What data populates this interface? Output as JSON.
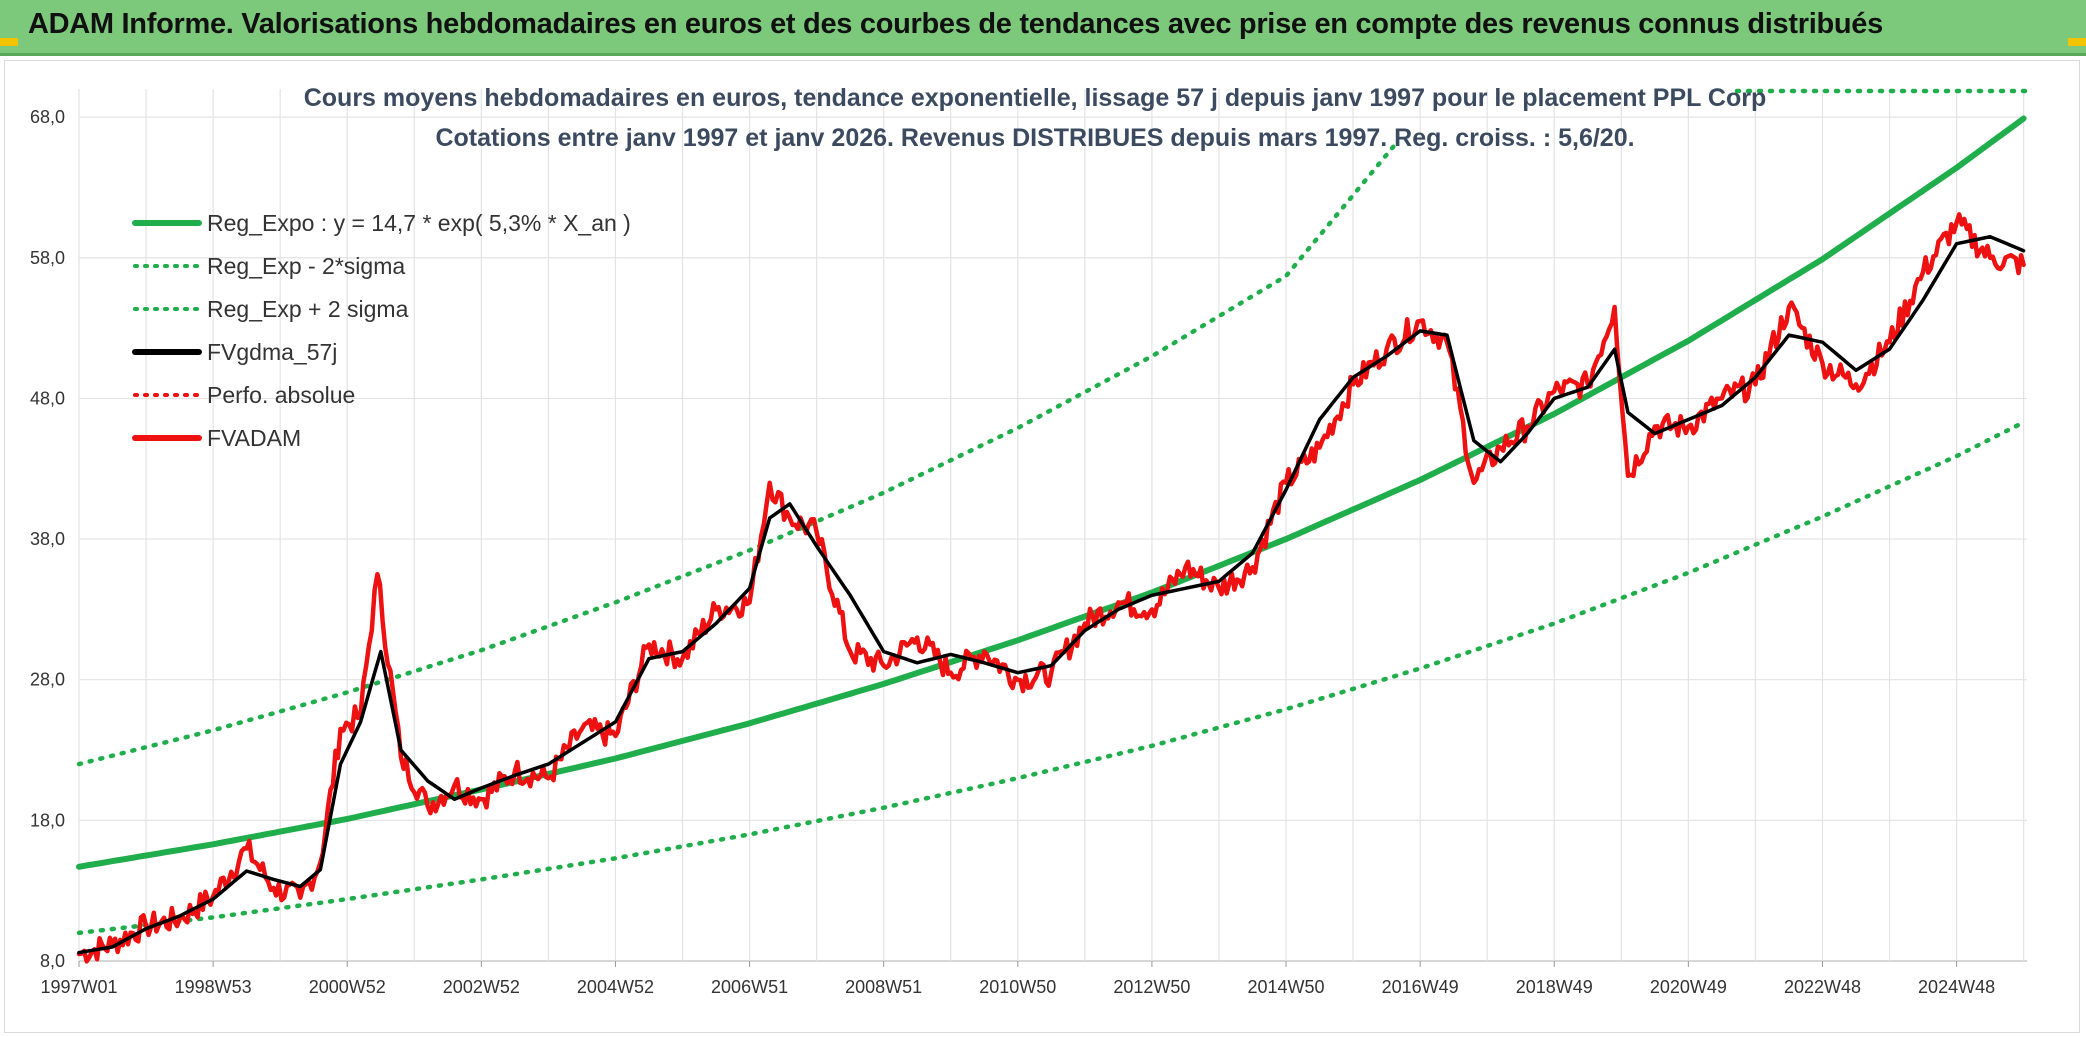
{
  "banner": {
    "title": "ADAM Informe. Valorisations hebdomadaires en euros et des courbes de tendances avec prise en compte des revenus connus distribués"
  },
  "colors": {
    "banner_bg": "#7dc97b",
    "trend_green": "#1fae4b",
    "fvadam_red": "#ee1111",
    "fvgdma_black": "#000000",
    "grid": "#e3e3e3"
  },
  "chart_data": {
    "type": "line",
    "title": "Cours moyens hebdomadaires en euros, tendance exponentielle, lissage 57 j depuis janv 1997 pour le placement PPL Corp",
    "subtitle": "Cotations entre janv 1997 et janv 2026. Revenus DISTRIBUES depuis mars 1997. Reg. croiss. : 5,6/20.",
    "xlabel": "",
    "ylabel": "",
    "x_range": [
      1997.0,
      2026.05
    ],
    "ylim": [
      8,
      70
    ],
    "y_ticks": [
      "8,0",
      "18,0",
      "28,0",
      "38,0",
      "48,0",
      "58,0",
      "68,0"
    ],
    "y_tick_values": [
      8,
      18,
      28,
      38,
      48,
      58,
      68
    ],
    "x_ticks": [
      "1997W01",
      "1998W53",
      "2000W52",
      "2002W52",
      "2004W52",
      "2006W51",
      "2008W51",
      "2010W50",
      "2012W50",
      "2014W50",
      "2016W49",
      "2018W49",
      "2020W49",
      "2022W48",
      "2024W48"
    ],
    "x_tick_values": [
      1997.0,
      1999.0,
      2001.0,
      2003.0,
      2005.0,
      2007.0,
      2009.0,
      2011.0,
      2013.0,
      2015.0,
      2017.0,
      2019.0,
      2021.0,
      2023.0,
      2025.0
    ],
    "grid": true,
    "legend_position": "top-left",
    "legend": [
      {
        "label": "Reg_Expo : y = 14,7 * exp( 5,3% *  X_an )",
        "style": "solid",
        "color": "#1fae4b"
      },
      {
        "label": "Reg_Exp - 2*sigma",
        "style": "dotted",
        "color": "#1fae4b"
      },
      {
        "label": "Reg_Exp + 2 sigma",
        "style": "dotted",
        "color": "#1fae4b"
      },
      {
        "label": "FVgdma_57j",
        "style": "solid",
        "color": "#000000"
      },
      {
        "label": "Perfo. absolue",
        "style": "dotted",
        "color": "#ee1111"
      },
      {
        "label": "FVADAM",
        "style": "solid",
        "color": "#ee1111"
      }
    ],
    "series": [
      {
        "name": "Reg_Expo : y = 14,7 * exp( 5,3% *  X_an )",
        "x": [
          1997.0,
          1999.0,
          2001.0,
          2003.0,
          2005.0,
          2007.0,
          2009.0,
          2011.0,
          2013.0,
          2015.0,
          2017.0,
          2019.0,
          2021.0,
          2023.0,
          2025.0,
          2026.0
        ],
        "y": [
          14.7,
          16.3,
          18.1,
          20.2,
          22.4,
          24.9,
          27.7,
          30.8,
          34.2,
          38.0,
          42.2,
          46.9,
          52.1,
          57.9,
          64.4,
          67.9
        ]
      },
      {
        "name": "Reg_Exp - 2*sigma",
        "x": [
          1997.0,
          1999.0,
          2001.0,
          2003.0,
          2005.0,
          2007.0,
          2009.0,
          2011.0,
          2013.0,
          2015.0,
          2017.0,
          2019.0,
          2021.0,
          2023.0,
          2025.0,
          2026.0
        ],
        "y": [
          10.0,
          11.1,
          12.4,
          13.8,
          15.3,
          17.0,
          18.9,
          21.0,
          23.3,
          25.9,
          28.8,
          32.0,
          35.6,
          39.6,
          43.9,
          46.3
        ]
      },
      {
        "name": "Reg_Exp + 2 sigma",
        "x": [
          1997.0,
          1999.0,
          2001.0,
          2003.0,
          2005.0,
          2007.0,
          2009.0,
          2011.0,
          2013.0,
          2015.0,
          2016.6
        ],
        "y": [
          22.0,
          24.4,
          27.1,
          30.1,
          33.5,
          37.2,
          41.3,
          45.9,
          51.0,
          56.7,
          65.9
        ]
      },
      {
        "name": "FVgdma_57j",
        "x": [
          1997.0,
          1997.5,
          1998.0,
          1998.5,
          1999.0,
          1999.5,
          1999.9,
          2000.3,
          2000.6,
          2000.9,
          2001.2,
          2001.5,
          2001.8,
          2002.2,
          2002.6,
          2003.0,
          2003.5,
          2004.0,
          2004.5,
          2005.0,
          2005.5,
          2006.0,
          2006.5,
          2007.0,
          2007.3,
          2007.6,
          2008.0,
          2008.5,
          2009.0,
          2009.5,
          2010.0,
          2010.5,
          2011.0,
          2011.5,
          2012.0,
          2012.5,
          2013.0,
          2013.5,
          2014.0,
          2014.5,
          2015.0,
          2015.5,
          2016.0,
          2016.5,
          2017.0,
          2017.4,
          2017.8,
          2018.2,
          2018.6,
          2019.0,
          2019.5,
          2019.9,
          2020.1,
          2020.5,
          2021.0,
          2021.5,
          2022.0,
          2022.5,
          2023.0,
          2023.5,
          2024.0,
          2024.5,
          2025.0,
          2025.5,
          2026.0
        ],
        "y": [
          8.6,
          9.0,
          10.3,
          11.2,
          12.4,
          14.4,
          13.8,
          13.3,
          14.5,
          22.0,
          25.0,
          30.0,
          23.0,
          20.8,
          19.5,
          20.3,
          21.2,
          22.0,
          23.5,
          25.0,
          29.5,
          30.0,
          32.0,
          34.5,
          39.5,
          40.5,
          37.5,
          34.0,
          30.0,
          29.2,
          29.8,
          29.2,
          28.5,
          29.0,
          31.5,
          33.0,
          34.0,
          34.5,
          35.0,
          37.0,
          41.5,
          46.5,
          49.5,
          51.0,
          52.8,
          52.5,
          45.0,
          43.5,
          45.5,
          48.0,
          48.8,
          51.5,
          47.0,
          45.5,
          46.5,
          47.5,
          49.5,
          52.5,
          52.0,
          50.0,
          51.5,
          55.0,
          59.0,
          59.5,
          58.5
        ]
      },
      {
        "name": "FVADAM",
        "x": [
          1997.0,
          1997.5,
          1998.0,
          1998.5,
          1999.0,
          1999.5,
          1999.9,
          2000.3,
          2000.6,
          2000.9,
          2001.2,
          2001.45,
          2001.8,
          2002.2,
          2002.6,
          2003.0,
          2003.5,
          2004.0,
          2004.5,
          2005.0,
          2005.5,
          2006.0,
          2006.5,
          2007.0,
          2007.3,
          2007.6,
          2008.0,
          2008.5,
          2009.0,
          2009.5,
          2010.0,
          2010.5,
          2011.0,
          2011.5,
          2012.0,
          2012.5,
          2013.0,
          2013.5,
          2014.0,
          2014.5,
          2015.0,
          2015.5,
          2016.0,
          2016.5,
          2017.0,
          2017.4,
          2017.8,
          2018.2,
          2018.6,
          2019.0,
          2019.5,
          2019.9,
          2020.1,
          2020.5,
          2021.0,
          2021.5,
          2022.0,
          2022.5,
          2023.0,
          2023.5,
          2024.0,
          2024.5,
          2025.0,
          2025.5,
          2026.0
        ],
        "y": [
          8.5,
          9.2,
          10.5,
          11.0,
          12.6,
          16.0,
          13.2,
          12.5,
          15.0,
          24.5,
          25.5,
          35.5,
          22.5,
          19.0,
          20.5,
          19.5,
          21.5,
          21.0,
          24.5,
          24.0,
          30.5,
          29.5,
          33.0,
          33.5,
          42.0,
          39.5,
          38.5,
          30.0,
          29.0,
          31.0,
          28.5,
          30.0,
          28.0,
          28.5,
          32.0,
          33.5,
          33.0,
          36.0,
          34.5,
          36.0,
          42.0,
          44.5,
          49.0,
          51.5,
          53.5,
          52.0,
          42.0,
          44.5,
          46.0,
          48.5,
          49.0,
          54.5,
          42.5,
          46.0,
          46.0,
          48.0,
          49.0,
          54.5,
          50.5,
          49.0,
          52.0,
          57.0,
          60.5,
          58.0,
          57.5
        ]
      }
    ]
  }
}
